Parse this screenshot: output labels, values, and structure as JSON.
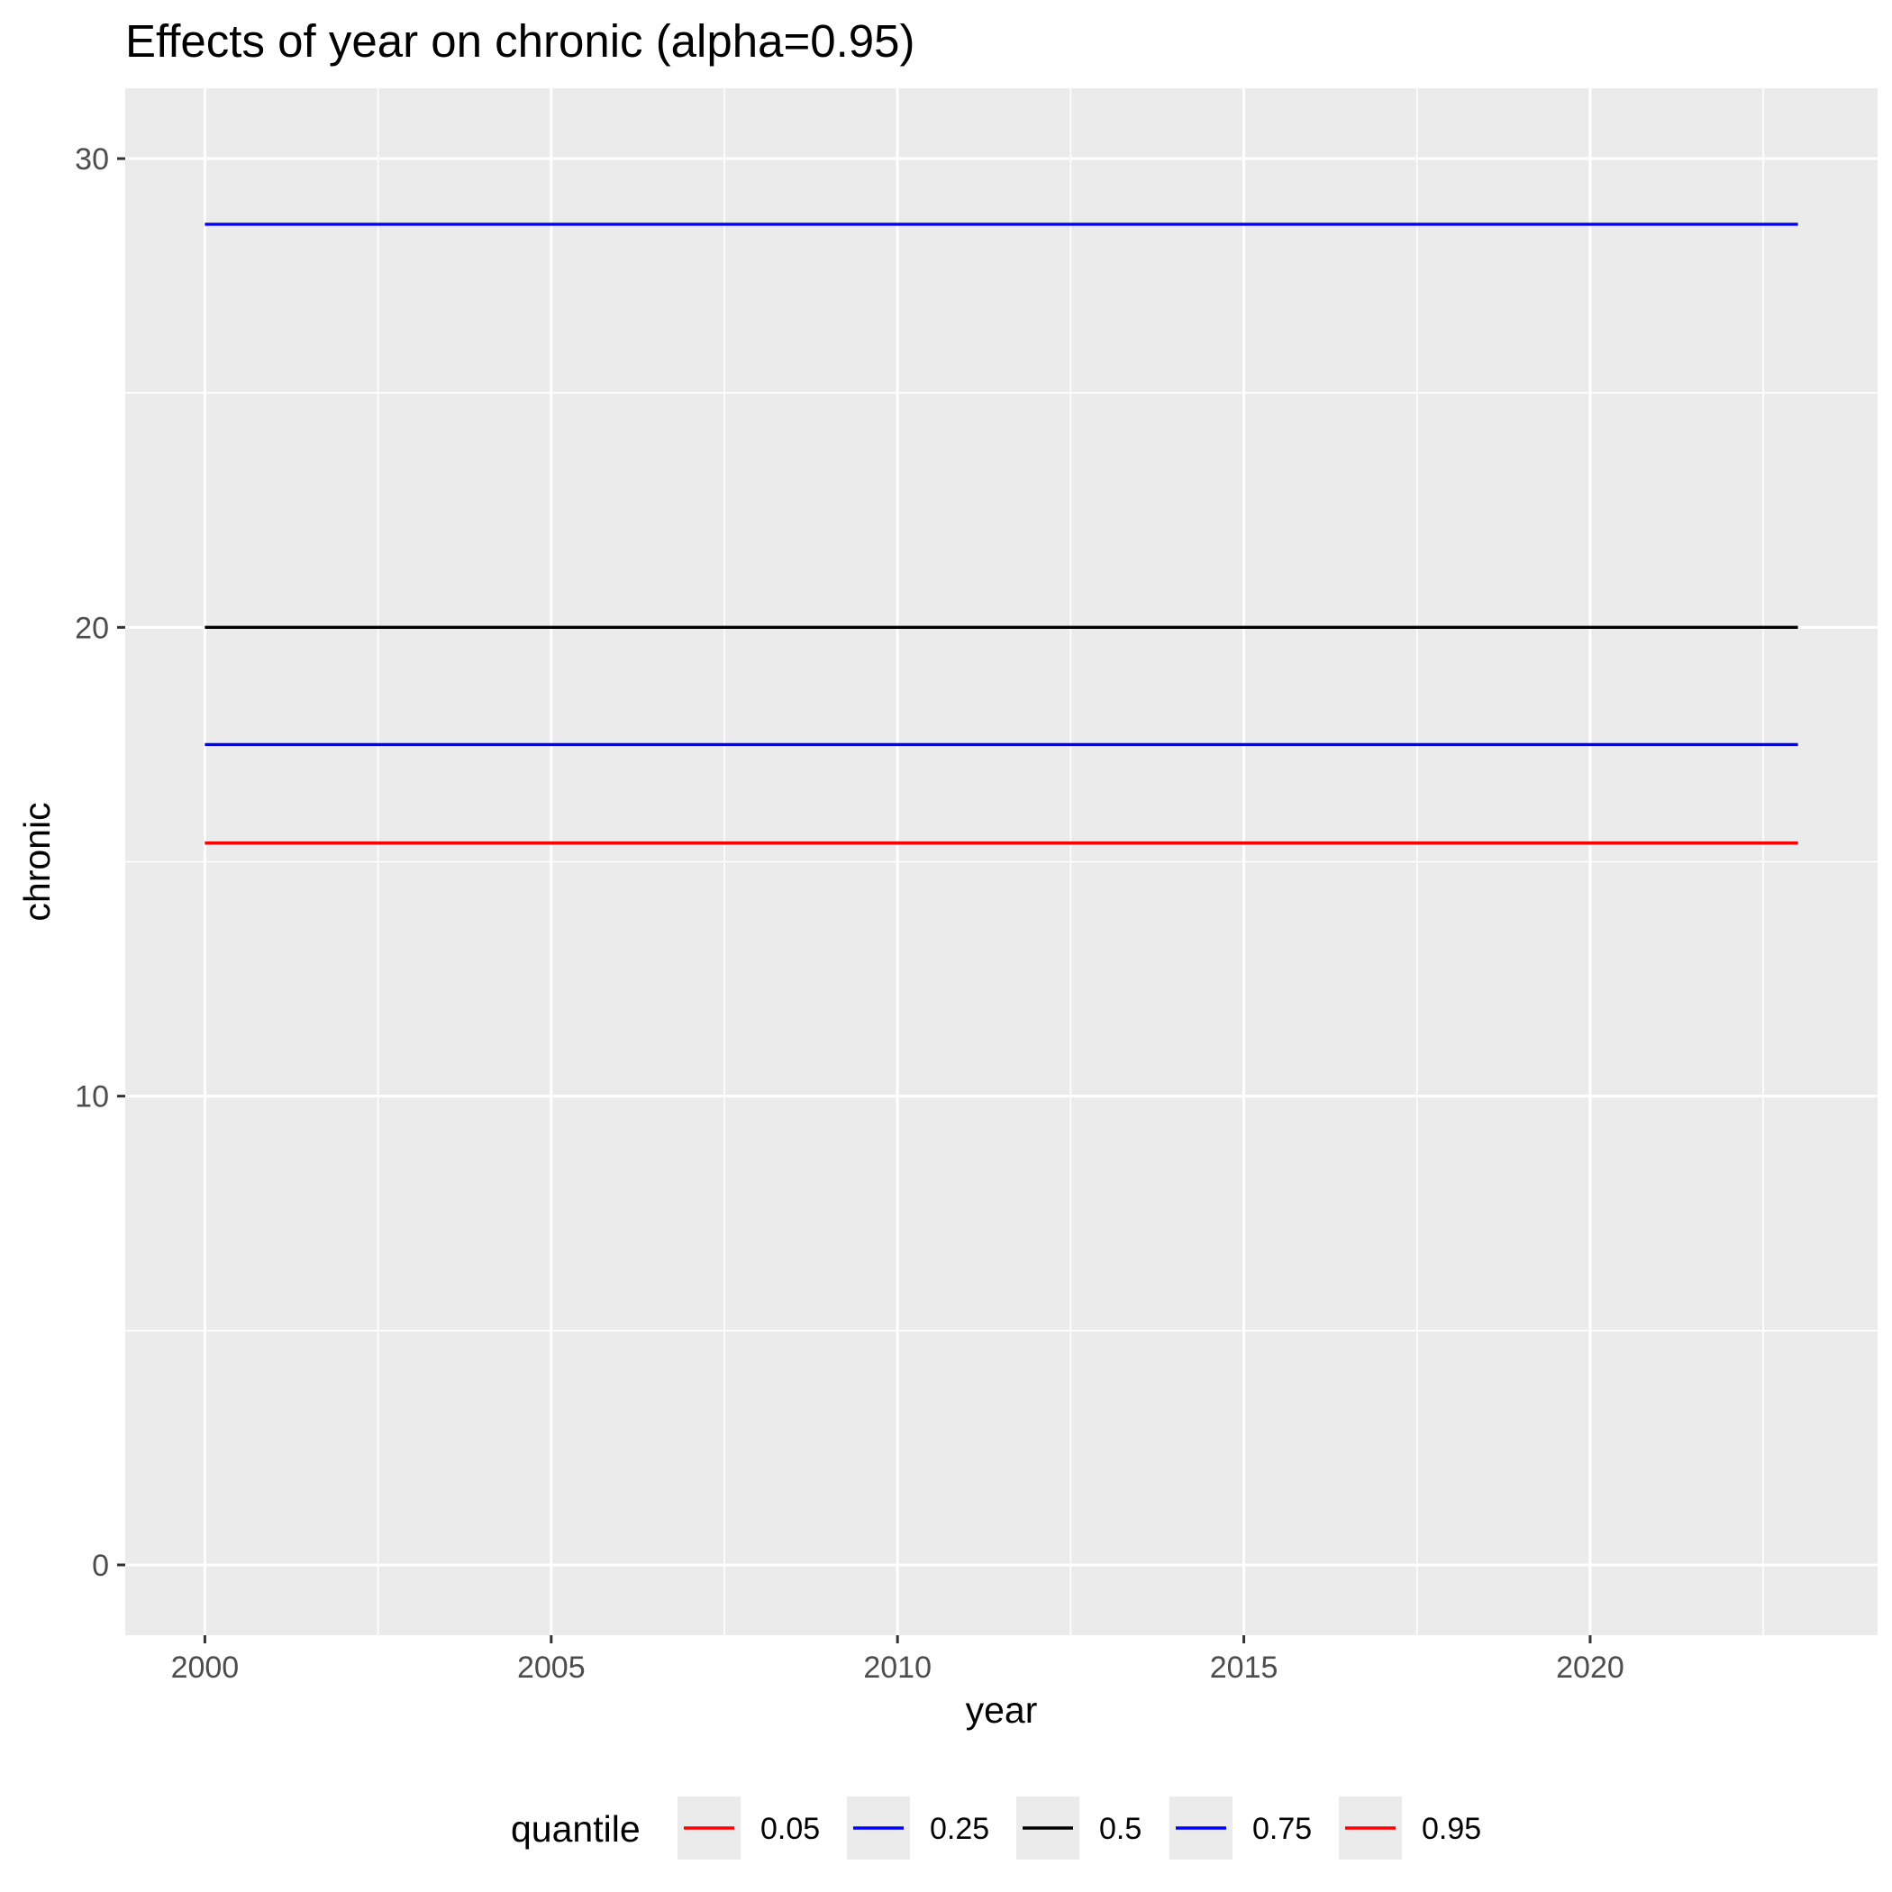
{
  "chart_data": {
    "type": "line",
    "title": "Effects of year on chronic (alpha=0.95)",
    "xlabel": "year",
    "ylabel": "chronic",
    "xlim": [
      1998.85,
      2024.15
    ],
    "ylim": [
      -1.5,
      31.5
    ],
    "x_ticks": [
      2000,
      2005,
      2010,
      2015,
      2020
    ],
    "x_tick_labels": [
      "2000",
      "2005",
      "2010",
      "2015",
      "2020"
    ],
    "y_ticks": [
      0,
      10,
      20,
      30
    ],
    "y_tick_labels": [
      "0",
      "10",
      "20",
      "30"
    ],
    "grid": true,
    "background": "#ebebeb",
    "legend": {
      "title": "quantile",
      "position": "bottom"
    },
    "series": [
      {
        "name": "0.05",
        "color": "#ff0000",
        "x": [
          2000,
          2023
        ],
        "y": [
          15.4,
          15.4
        ]
      },
      {
        "name": "0.25",
        "color": "#0000ff",
        "x": [
          2000,
          2023
        ],
        "y": [
          17.5,
          17.5
        ]
      },
      {
        "name": "0.5",
        "color": "#000000",
        "x": [
          2000,
          2023
        ],
        "y": [
          20.0,
          20.0
        ]
      },
      {
        "name": "0.75",
        "color": "#0000ff",
        "x": [
          2000,
          2023
        ],
        "y": [
          28.6,
          28.6
        ]
      },
      {
        "name": "0.95",
        "color": "#ff0000",
        "x": [
          2000,
          2023
        ],
        "y": [
          15.4,
          15.4
        ]
      }
    ]
  }
}
